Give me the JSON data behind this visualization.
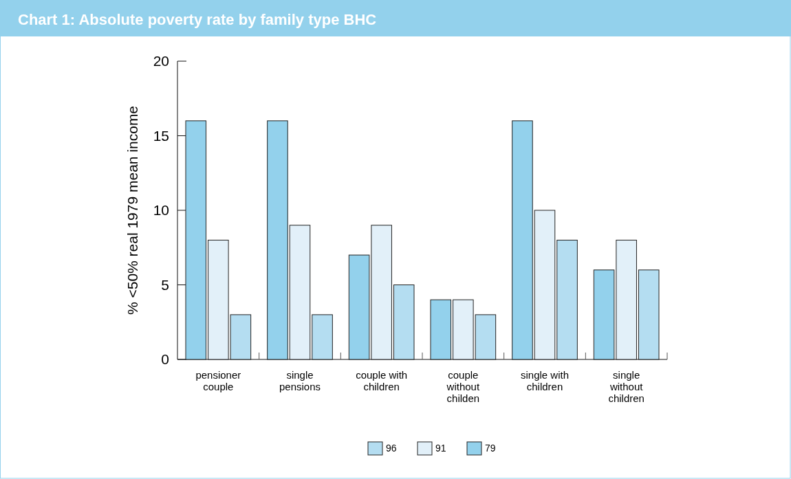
{
  "chart_data": {
    "type": "bar",
    "title": "Chart 1: Absolute poverty rate by family type BHC",
    "ylabel": "% <50% real 1979 mean income",
    "categories": [
      "pensioner couple",
      "single pensions",
      "couple with children",
      "couple without childen",
      "single with children",
      "single without children"
    ],
    "series": [
      {
        "name": "79",
        "color": "#93d1ec",
        "values": [
          16,
          16,
          7,
          4,
          16,
          6
        ]
      },
      {
        "name": "91",
        "color": "#e2f0f9",
        "values": [
          8,
          9,
          9,
          4,
          10,
          8
        ]
      },
      {
        "name": "96",
        "color": "#b4ddf1",
        "values": [
          3,
          3,
          5,
          3,
          8,
          6
        ]
      }
    ],
    "ylim": [
      0,
      20
    ],
    "yticks": [
      0,
      5,
      10,
      15,
      20
    ],
    "legend": "bottom"
  }
}
